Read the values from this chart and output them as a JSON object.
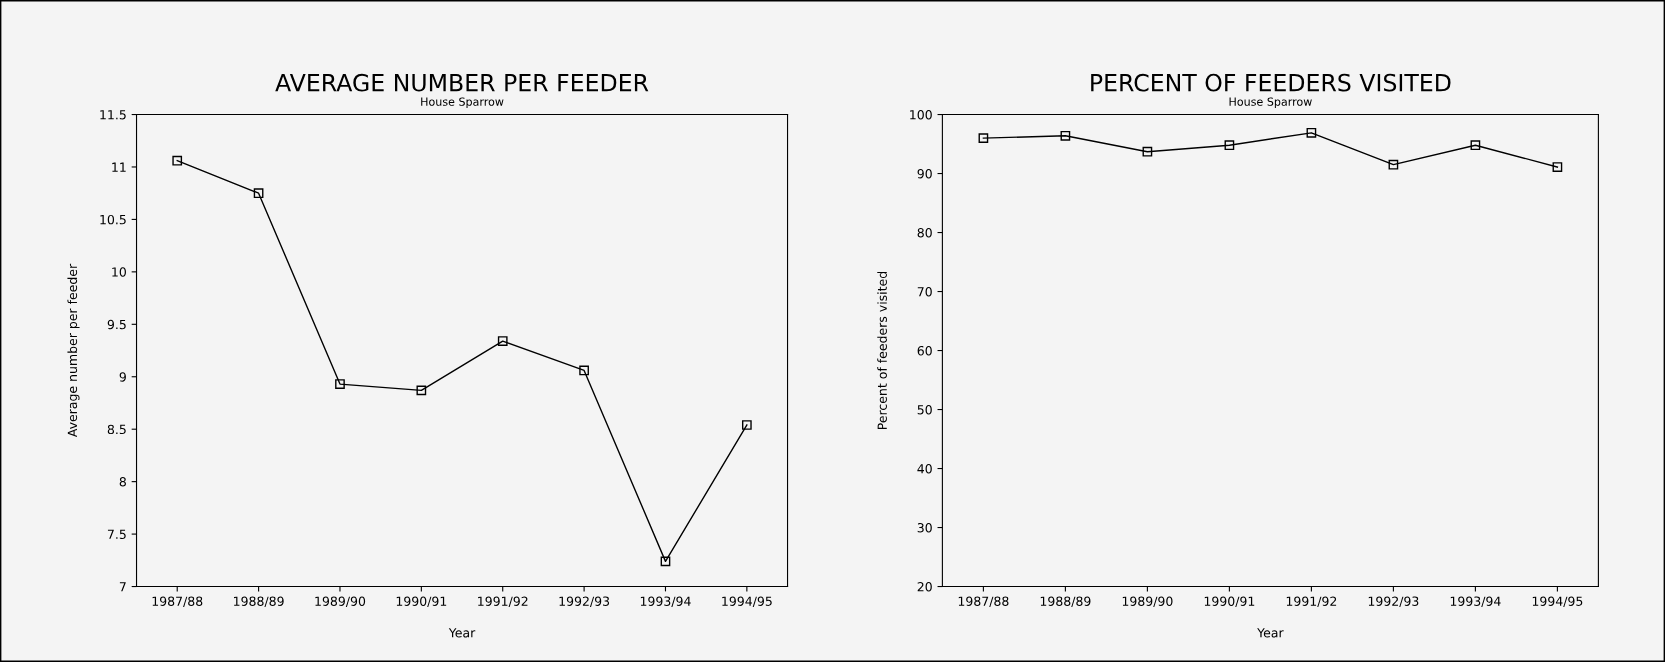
{
  "chart_data": [
    {
      "type": "line",
      "title": "AVERAGE NUMBER PER FEEDER",
      "subtitle": "House Sparrow",
      "xlabel": "Year",
      "ylabel": "Average number per feeder",
      "categories": [
        "1987/88",
        "1988/89",
        "1989/90",
        "1990/91",
        "1991/92",
        "1992/93",
        "1993/94",
        "1994/95"
      ],
      "series": [
        {
          "color": "#000000",
          "values": [
            11.06,
            10.75,
            8.93,
            8.87,
            9.34,
            9.06,
            7.24,
            8.54
          ]
        }
      ],
      "ylim": [
        7,
        11.5
      ],
      "yticks": [
        7,
        7.5,
        8,
        8.5,
        9,
        9.5,
        10,
        10.5,
        11,
        11.5
      ],
      "marker": "square",
      "line_style": "solid",
      "grid": false,
      "legend": false
    },
    {
      "type": "line",
      "title": "PERCENT OF FEEDERS VISITED",
      "subtitle": "House Sparrow",
      "xlabel": "Year",
      "ylabel": "Percent of feeders visited",
      "categories": [
        "1987/88",
        "1988/89",
        "1989/90",
        "1990/91",
        "1991/92",
        "1992/93",
        "1993/94",
        "1994/95"
      ],
      "series": [
        {
          "color": "#000000",
          "values": [
            96.0,
            96.4,
            93.7,
            94.8,
            96.9,
            91.5,
            94.8,
            91.1
          ]
        }
      ],
      "ylim": [
        20,
        100
      ],
      "yticks": [
        20,
        30,
        40,
        50,
        60,
        70,
        80,
        90,
        100
      ],
      "marker": "square",
      "line_style": "solid",
      "grid": false,
      "legend": false
    }
  ]
}
